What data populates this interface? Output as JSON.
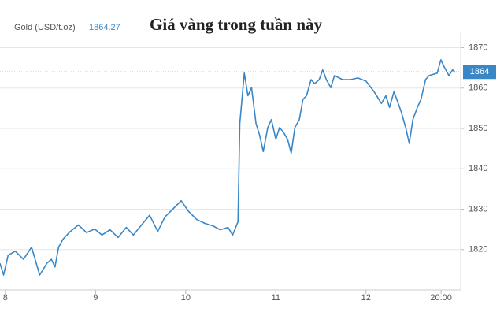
{
  "chart_data": {
    "type": "line",
    "title": "Giá vàng trong tuần này",
    "last_value": 1864.27,
    "price_tag": 1864,
    "x": [
      7.94,
      7.98,
      8.03,
      8.11,
      8.2,
      8.29,
      8.38,
      8.46,
      8.51,
      8.55,
      8.59,
      8.64,
      8.72,
      8.81,
      8.9,
      8.99,
      9.07,
      9.16,
      9.25,
      9.34,
      9.42,
      9.51,
      9.6,
      9.69,
      9.77,
      9.86,
      9.95,
      10.03,
      10.12,
      10.21,
      10.3,
      10.38,
      10.47,
      10.52,
      10.58,
      10.6,
      10.65,
      10.69,
      10.73,
      10.78,
      10.82,
      10.86,
      10.91,
      10.95,
      11.0,
      11.04,
      11.08,
      11.13,
      11.17,
      11.21,
      11.26,
      11.3,
      11.34,
      11.39,
      11.43,
      11.48,
      11.52,
      11.56,
      11.61,
      11.65,
      11.74,
      11.83,
      11.91,
      12.0,
      12.09,
      12.17,
      12.22,
      12.26,
      12.31,
      12.39,
      12.44,
      12.48,
      12.52,
      12.57,
      12.61,
      12.66,
      12.7,
      12.79,
      12.83,
      12.87,
      12.92,
      12.96,
      12.99
    ],
    "series": [
      {
        "name": "Gold (USD/t.oz)",
        "color": "#3a87c8",
        "values": [
          1816.6,
          1813.7,
          1818.6,
          1819.6,
          1817.6,
          1820.6,
          1813.7,
          1816.6,
          1817.6,
          1815.7,
          1820.6,
          1822.6,
          1824.5,
          1826.1,
          1824.2,
          1825.1,
          1823.6,
          1824.9,
          1823.0,
          1825.5,
          1823.6,
          1826.1,
          1828.5,
          1824.5,
          1828.1,
          1830.1,
          1832.1,
          1829.5,
          1827.5,
          1826.5,
          1825.9,
          1824.9,
          1825.5,
          1823.6,
          1826.9,
          1851.2,
          1863.7,
          1858.1,
          1860.1,
          1851.2,
          1848.3,
          1844.3,
          1850.2,
          1852.2,
          1847.3,
          1850.2,
          1849.2,
          1847.3,
          1843.9,
          1850.2,
          1852.2,
          1857.2,
          1858.1,
          1862.1,
          1861.1,
          1862.1,
          1864.5,
          1862.1,
          1860.1,
          1863.1,
          1862.1,
          1862.1,
          1862.5,
          1861.7,
          1859.1,
          1856.2,
          1858.1,
          1855.2,
          1859.1,
          1854.2,
          1850.2,
          1846.3,
          1852.2,
          1855.2,
          1857.2,
          1862.1,
          1863.1,
          1863.7,
          1867.0,
          1865.1,
          1863.1,
          1864.5,
          1863.9
        ]
      }
    ],
    "xlim": [
      7.94,
      13.05
    ],
    "xticks": [
      8,
      9,
      10,
      11,
      12,
      {
        "value": 12.833,
        "label": "20:00"
      }
    ],
    "ylim": [
      1810,
      1874
    ],
    "yticks": [
      1820,
      1830,
      1840,
      1850,
      1860,
      1870
    ],
    "grid": true
  }
}
